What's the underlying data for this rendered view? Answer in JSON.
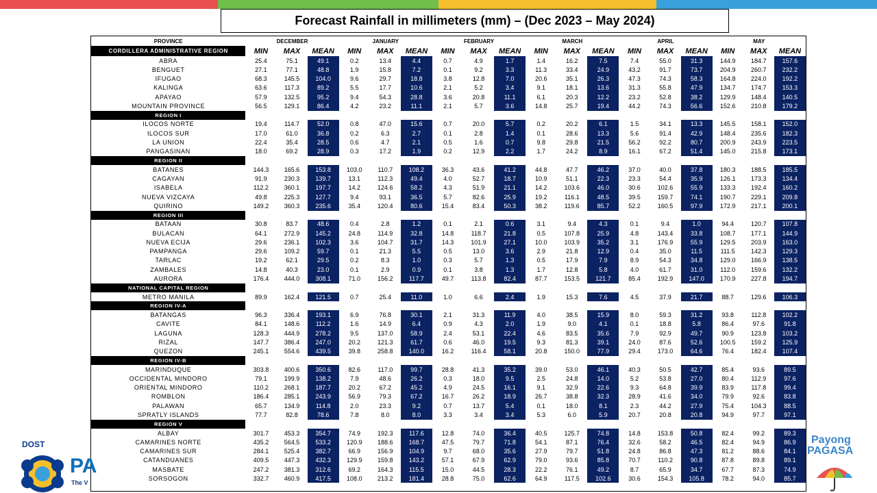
{
  "title": "Forecast Rainfall  in millimeters  (mm) – (Dec 2023 – May 2024)",
  "colors": {
    "mean_cell": "#0b2263",
    "bar_red": "#e8514e",
    "bar_green": "#6fbf4a",
    "bar_yellow": "#f5c02b",
    "bar_blue": "#3aa0dc"
  },
  "header": {
    "province": "PROVINCE",
    "first_region": "CORDILLERA ADMINISTRATIVE REGION",
    "months": [
      "DECEMBER",
      "JANUARY",
      "FEBRUARY",
      "MARCH",
      "APRIL",
      "MAY"
    ],
    "stats": [
      "MIN",
      "MAX",
      "MEAN"
    ]
  },
  "groups": [
    {
      "name": "CORDILLERA ADMINISTRATIVE REGION",
      "rows": [
        {
          "name": "ABRA",
          "v": [
            "25.4",
            "75.1",
            "49.1",
            "0.2",
            "13.4",
            "4.4",
            "0.7",
            "4.9",
            "1.7",
            "1.4",
            "16.2",
            "7.5",
            "7.4",
            "55.0",
            "31.3",
            "144.9",
            "184.7",
            "157.6"
          ]
        },
        {
          "name": "BENGUET",
          "v": [
            "27.1",
            "77.1",
            "48.8",
            "1.9",
            "15.8",
            "7.2",
            "0.1",
            "9.2",
            "3.3",
            "11.3",
            "33.4",
            "24.9",
            "43.2",
            "91.7",
            "73.7",
            "204.9",
            "260.7",
            "232.2"
          ]
        },
        {
          "name": "IFUGAO",
          "v": [
            "68.3",
            "145.5",
            "104.0",
            "9.6",
            "29.7",
            "18.8",
            "3.8",
            "12.8",
            "7.0",
            "20.6",
            "35.1",
            "26.3",
            "47.3",
            "74.3",
            "58.3",
            "164.8",
            "224.0",
            "192.2"
          ]
        },
        {
          "name": "KALINGA",
          "v": [
            "63.6",
            "117.3",
            "89.2",
            "5.5",
            "17.7",
            "10.6",
            "2.1",
            "5.2",
            "3.4",
            "9.1",
            "18.1",
            "13.6",
            "31.3",
            "55.8",
            "47.9",
            "134.7",
            "174.7",
            "153.3"
          ]
        },
        {
          "name": "APAYAO",
          "v": [
            "57.9",
            "132.5",
            "95.2",
            "9.4",
            "54.3",
            "28.8",
            "3.6",
            "20.8",
            "11.1",
            "6.1",
            "20.3",
            "12.2",
            "23.2",
            "52.8",
            "38.2",
            "129.9",
            "148.4",
            "140.5"
          ]
        },
        {
          "name": "MOUNTAIN PROVINCE",
          "v": [
            "56.5",
            "129.1",
            "86.4",
            "4.2",
            "23.2",
            "11.1",
            "2.1",
            "5.7",
            "3.6",
            "14.8",
            "25.7",
            "19.4",
            "44.2",
            "74.3",
            "56.6",
            "152.6",
            "210.8",
            "179.2"
          ]
        }
      ]
    },
    {
      "name": "REGION I",
      "rows": [
        {
          "name": "ILOCOS NORTE",
          "v": [
            "19.4",
            "114.7",
            "52.0",
            "0.8",
            "47.0",
            "15.6",
            "0.7",
            "20.0",
            "5.7",
            "0.2",
            "20.2",
            "6.1",
            "1.5",
            "34.1",
            "13.3",
            "145.5",
            "158.1",
            "152.0"
          ]
        },
        {
          "name": "ILOCOS SUR",
          "v": [
            "17.0",
            "61.0",
            "36.8",
            "0.2",
            "6.3",
            "2.7",
            "0.1",
            "2.8",
            "1.4",
            "0.1",
            "28.6",
            "13.3",
            "5.6",
            "91.4",
            "42.9",
            "148.4",
            "235.6",
            "182.3"
          ]
        },
        {
          "name": "LA UNION",
          "v": [
            "22.4",
            "35.4",
            "28.5",
            "0.6",
            "4.7",
            "2.1",
            "0.5",
            "1.6",
            "0.7",
            "9.8",
            "29.8",
            "21.5",
            "56.2",
            "92.2",
            "80.7",
            "200.9",
            "243.9",
            "223.5"
          ]
        },
        {
          "name": "PANGASINAN",
          "v": [
            "18.0",
            "69.2",
            "28.9",
            "0.3",
            "17.2",
            "1.9",
            "0.2",
            "12.9",
            "2.2",
            "1.7",
            "24.2",
            "8.9",
            "16.1",
            "67.2",
            "51.4",
            "145.0",
            "215.8",
            "173.1"
          ]
        }
      ]
    },
    {
      "name": "REGION II",
      "rows": [
        {
          "name": "BATANES",
          "v": [
            "144.3",
            "165.6",
            "153.8",
            "103.0",
            "110.7",
            "108.2",
            "36.3",
            "43.6",
            "41.2",
            "44.8",
            "47.7",
            "46.2",
            "37.0",
            "40.0",
            "37.8",
            "180.3",
            "188.5",
            "185.5"
          ]
        },
        {
          "name": "CAGAYAN",
          "v": [
            "91.9",
            "230.3",
            "139.7",
            "13.1",
            "112.3",
            "49.4",
            "4.0",
            "52.7",
            "18.7",
            "10.9",
            "51.1",
            "22.3",
            "23.3",
            "54.4",
            "35.9",
            "126.1",
            "173.3",
            "134.4"
          ]
        },
        {
          "name": "ISABELA",
          "v": [
            "112.2",
            "360.1",
            "197.7",
            "14.2",
            "124.6",
            "58.2",
            "4.3",
            "51.9",
            "21.1",
            "14.2",
            "103.6",
            "46.0",
            "30.6",
            "102.6",
            "55.9",
            "133.3",
            "192.4",
            "160.2"
          ]
        },
        {
          "name": "NUEVA VIZCAYA",
          "v": [
            "49.8",
            "225.3",
            "127.7",
            "9.4",
            "93.1",
            "36.5",
            "5.7",
            "82.6",
            "25.9",
            "19.2",
            "116.1",
            "48.5",
            "39.5",
            "159.7",
            "74.1",
            "190.7",
            "229.1",
            "209.8"
          ]
        },
        {
          "name": "QUIRINO",
          "v": [
            "149.2",
            "360.3",
            "235.6",
            "35.4",
            "120.4",
            "80.6",
            "15.4",
            "83.4",
            "50.3",
            "38.2",
            "119.6",
            "85.7",
            "52.2",
            "160.5",
            "97.9",
            "172.9",
            "217.1",
            "200.1"
          ]
        }
      ]
    },
    {
      "name": "REGION III",
      "rows": [
        {
          "name": "BATAAN",
          "v": [
            "30.8",
            "83.7",
            "48.6",
            "0.4",
            "2.8",
            "1.2",
            "0.1",
            "2.1",
            "0.6",
            "3.1",
            "9.4",
            "4.3",
            "0.1",
            "9.4",
            "1.0",
            "94.4",
            "120.7",
            "107.8"
          ]
        },
        {
          "name": "BULACAN",
          "v": [
            "64.1",
            "272.9",
            "145.2",
            "24.8",
            "114.9",
            "32.8",
            "14.8",
            "118.7",
            "21.8",
            "0.5",
            "107.8",
            "25.9",
            "4.8",
            "143.4",
            "33.8",
            "108.7",
            "177.1",
            "144.9"
          ]
        },
        {
          "name": "NUEVA ECIJA",
          "v": [
            "29.6",
            "236.1",
            "102.3",
            "3.6",
            "104.7",
            "31.7",
            "14.3",
            "101.9",
            "27.1",
            "10.0",
            "103.9",
            "35.2",
            "3.1",
            "176.9",
            "55.9",
            "129.5",
            "203.9",
            "163.0"
          ]
        },
        {
          "name": "PAMPANGA",
          "v": [
            "29.6",
            "109.2",
            "59.7",
            "0.1",
            "21.3",
            "5.5",
            "0.5",
            "13.0",
            "3.6",
            "2.9",
            "21.8",
            "12.9",
            "0.4",
            "35.0",
            "11.5",
            "111.5",
            "142.3",
            "129.3"
          ]
        },
        {
          "name": "TARLAC",
          "v": [
            "19.2",
            "62.1",
            "29.5",
            "0.2",
            "8.3",
            "1.0",
            "0.3",
            "5.7",
            "1.3",
            "0.5",
            "17.9",
            "7.9",
            "8.9",
            "54.3",
            "34.8",
            "129.0",
            "166.9",
            "138.5"
          ]
        },
        {
          "name": "ZAMBALES",
          "v": [
            "14.8",
            "40.3",
            "23.0",
            "0.1",
            "2.9",
            "0.9",
            "0.1",
            "3.8",
            "1.3",
            "1.7",
            "12.8",
            "5.8",
            "4.0",
            "61.7",
            "31.0",
            "112.0",
            "159.6",
            "132.2"
          ]
        },
        {
          "name": "AURORA",
          "v": [
            "176.4",
            "444.0",
            "308.1",
            "71.0",
            "156.2",
            "117.7",
            "49.7",
            "113.8",
            "82.4",
            "87.7",
            "153.5",
            "121.7",
            "85.4",
            "192.9",
            "147.0",
            "170.9",
            "227.8",
            "194.7"
          ]
        }
      ]
    },
    {
      "name": "NATIONAL CAPITAL REGION",
      "rows": [
        {
          "name": "METRO MANILA",
          "v": [
            "89.9",
            "162.4",
            "121.5",
            "0.7",
            "25.4",
            "11.0",
            "1.0",
            "6.6",
            "2.4",
            "1.9",
            "15.3",
            "7.6",
            "4.5",
            "37.9",
            "21.7",
            "88.7",
            "129.6",
            "106.3"
          ]
        }
      ]
    },
    {
      "name": "REGION IV-A",
      "rows": [
        {
          "name": "BATANGAS",
          "v": [
            "96.3",
            "336.4",
            "193.1",
            "6.9",
            "76.8",
            "30.1",
            "2.1",
            "31.3",
            "11.9",
            "4.0",
            "38.5",
            "15.9",
            "8.0",
            "59.3",
            "31.2",
            "93.8",
            "112.8",
            "102.2"
          ]
        },
        {
          "name": "CAVITE",
          "v": [
            "84.1",
            "148.6",
            "112.2",
            "1.6",
            "14.9",
            "6.4",
            "0.9",
            "4.3",
            "2.0",
            "1.9",
            "9.0",
            "4.1",
            "0.1",
            "18.8",
            "5.8",
            "86.4",
            "97.6",
            "91.8"
          ]
        },
        {
          "name": "LAGUNA",
          "v": [
            "128.3",
            "444.9",
            "278.2",
            "9.5",
            "137.0",
            "58.9",
            "2.4",
            "53.1",
            "22.4",
            "4.6",
            "83.5",
            "35.6",
            "7.9",
            "92.9",
            "49.7",
            "90.9",
            "123.8",
            "103.2"
          ]
        },
        {
          "name": "RIZAL",
          "v": [
            "147.7",
            "386.4",
            "247.0",
            "20.2",
            "121.3",
            "61.7",
            "0.6",
            "46.0",
            "19.5",
            "9.3",
            "81.3",
            "39.1",
            "24.0",
            "87.6",
            "52.6",
            "100.5",
            "159.2",
            "125.9"
          ]
        },
        {
          "name": "QUEZON",
          "v": [
            "245.1",
            "554.6",
            "439.5",
            "39.8",
            "258.8",
            "140.0",
            "16.2",
            "116.4",
            "58.1",
            "20.8",
            "150.0",
            "77.9",
            "29.4",
            "173.0",
            "64.6",
            "76.4",
            "182.4",
            "107.4"
          ]
        }
      ]
    },
    {
      "name": "REGION IV-B",
      "rows": [
        {
          "name": "MARINDUQUE",
          "v": [
            "303.8",
            "400.6",
            "350.6",
            "82.6",
            "117.0",
            "99.7",
            "28.8",
            "41.3",
            "35.2",
            "39.0",
            "53.0",
            "46.1",
            "40.3",
            "50.5",
            "42.7",
            "85.4",
            "93.6",
            "89.5"
          ]
        },
        {
          "name": "OCCIDENTAL MINDORO",
          "v": [
            "79.1",
            "199.9",
            "138.2",
            "7.9",
            "48.6",
            "26.2",
            "0.3",
            "18.0",
            "9.5",
            "2.5",
            "24.8",
            "14.0",
            "5.2",
            "53.8",
            "27.0",
            "80.4",
            "112.9",
            "97.6"
          ]
        },
        {
          "name": "ORIENTAL MINDORO",
          "v": [
            "110.2",
            "268.1",
            "187.7",
            "20.2",
            "67.2",
            "45.2",
            "4.9",
            "24.5",
            "16.1",
            "9.1",
            "32.9",
            "22.6",
            "9.3",
            "64.8",
            "39.9",
            "83.9",
            "117.8",
            "99.4"
          ]
        },
        {
          "name": "ROMBLON",
          "v": [
            "186.4",
            "285.1",
            "243.9",
            "56.9",
            "79.3",
            "67.2",
            "16.7",
            "26.2",
            "18.9",
            "26.7",
            "38.8",
            "32.3",
            "28.9",
            "41.6",
            "34.0",
            "79.9",
            "92.6",
            "83.8"
          ]
        },
        {
          "name": "PALAWAN",
          "v": [
            "65.7",
            "134.9",
            "114.8",
            "2.0",
            "23.3",
            "9.2",
            "0.7",
            "13.7",
            "5.4",
            "0.1",
            "18.0",
            "8.1",
            "2.3",
            "44.2",
            "27.9",
            "75.4",
            "104.3",
            "88.5"
          ]
        },
        {
          "name": "SPRATLY ISLANDS",
          "v": [
            "77.7",
            "82.8",
            "78.6",
            "7.8",
            "8.0",
            "8.0",
            "3.3",
            "3.4",
            "3.4",
            "5.3",
            "6.0",
            "5.9",
            "20.7",
            "20.8",
            "20.8",
            "94.9",
            "97.7",
            "97.1"
          ]
        }
      ]
    },
    {
      "name": "REGION V",
      "rows": [
        {
          "name": "ALBAY",
          "v": [
            "301.7",
            "453.3",
            "354.7",
            "74.9",
            "192.3",
            "117.6",
            "12.8",
            "74.0",
            "36.4",
            "40.5",
            "125.7",
            "74.8",
            "14.8",
            "153.8",
            "50.8",
            "82.4",
            "99.2",
            "89.3"
          ]
        },
        {
          "name": "CAMARINES NORTE",
          "v": [
            "435.2",
            "564.5",
            "533.2",
            "120.9",
            "188.6",
            "168.7",
            "47.5",
            "79.7",
            "71.8",
            "54.1",
            "87.1",
            "76.4",
            "32.6",
            "58.2",
            "46.5",
            "82.4",
            "94.9",
            "86.9"
          ]
        },
        {
          "name": "CAMARINES SUR",
          "v": [
            "284.1",
            "525.4",
            "382.7",
            "66.9",
            "156.9",
            "104.9",
            "9.7",
            "68.0",
            "35.6",
            "27.9",
            "79.7",
            "51.8",
            "24.8",
            "86.8",
            "47.3",
            "81.2",
            "88.6",
            "84.1"
          ]
        },
        {
          "name": "CATANDUANES",
          "v": [
            "409.5",
            "447.3",
            "432.3",
            "129.9",
            "159.8",
            "143.2",
            "57.1",
            "67.9",
            "62.9",
            "79.0",
            "93.6",
            "85.8",
            "70.7",
            "110.2",
            "90.8",
            "87.8",
            "89.8",
            "89.1"
          ]
        },
        {
          "name": "MASBATE",
          "v": [
            "247.2",
            "381.3",
            "312.6",
            "69.2",
            "164.3",
            "115.5",
            "15.0",
            "44.5",
            "28.3",
            "22.2",
            "76.1",
            "49.2",
            "8.7",
            "65.9",
            "34.7",
            "67.7",
            "87.3",
            "74.9"
          ]
        },
        {
          "name": "SORSOGON",
          "v": [
            "332.7",
            "460.9",
            "417.5",
            "108.0",
            "213.2",
            "181.4",
            "28.8",
            "75.0",
            "62.6",
            "64.9",
            "117.5",
            "102.6",
            "30.6",
            "154.3",
            "105.8",
            "78.2",
            "94.0",
            "85.7"
          ]
        }
      ]
    }
  ],
  "logos": {
    "left": {
      "dost": "DOST",
      "brand_partial": "PA",
      "tagline_partial": "The V"
    },
    "right": {
      "line1": "Payong",
      "line2": "PAGASA"
    }
  }
}
